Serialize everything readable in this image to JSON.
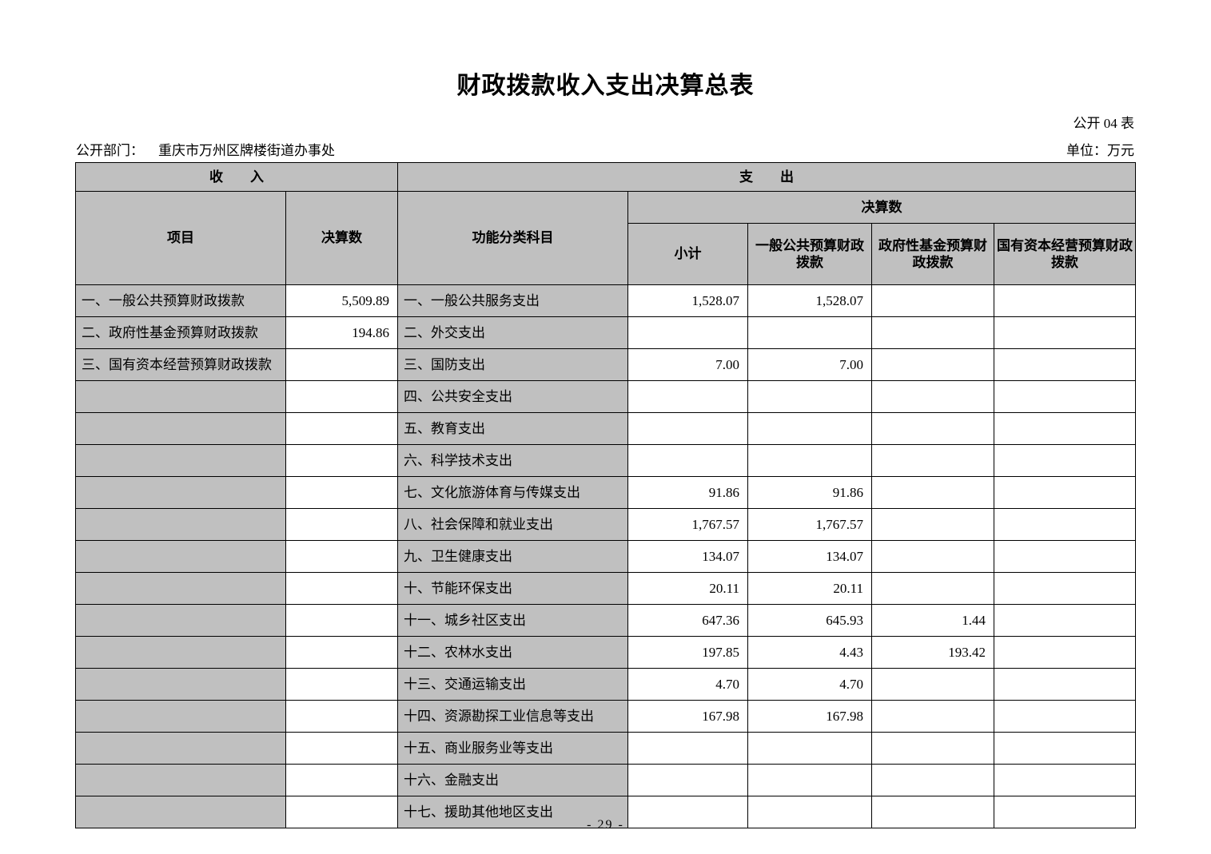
{
  "page": {
    "title": "财政拨款收入支出决算总表",
    "table_code": "公开 04 表",
    "department_label": "公开部门：",
    "department_value": "重庆市万州区牌楼街道办事处",
    "unit_label": "单位：万元",
    "page_number": "- 29 -"
  },
  "table": {
    "income_header": "收　　入",
    "expense_header": "支　　出",
    "columns": {
      "item": "项目",
      "income_final": "决算数",
      "functional": "功能分类科目",
      "final_group": "决算数",
      "subtotal": "小计",
      "general_public_budget": "一般公共预算财政拨款",
      "government_fund_budget": "政府性基金预算财政拨款",
      "state_capital_budget": "国有资本经营预算财政拨款"
    },
    "rows": [
      {
        "income_item": "一、一般公共预算财政拨款",
        "income_amount": "5,509.89",
        "expense_item": "一、一般公共服务支出",
        "subtotal": "1,528.07",
        "general": "1,528.07",
        "gov_fund": "",
        "state_capital": ""
      },
      {
        "income_item": "二、政府性基金预算财政拨款",
        "income_amount": "194.86",
        "expense_item": "二、外交支出",
        "subtotal": "",
        "general": "",
        "gov_fund": "",
        "state_capital": ""
      },
      {
        "income_item": "三、国有资本经营预算财政拨款",
        "income_amount": "",
        "expense_item": "三、国防支出",
        "subtotal": "7.00",
        "general": "7.00",
        "gov_fund": "",
        "state_capital": ""
      },
      {
        "income_item": "",
        "income_amount": "",
        "expense_item": "四、公共安全支出",
        "subtotal": "",
        "general": "",
        "gov_fund": "",
        "state_capital": ""
      },
      {
        "income_item": "",
        "income_amount": "",
        "expense_item": "五、教育支出",
        "subtotal": "",
        "general": "",
        "gov_fund": "",
        "state_capital": ""
      },
      {
        "income_item": "",
        "income_amount": "",
        "expense_item": "六、科学技术支出",
        "subtotal": "",
        "general": "",
        "gov_fund": "",
        "state_capital": ""
      },
      {
        "income_item": "",
        "income_amount": "",
        "expense_item": "七、文化旅游体育与传媒支出",
        "subtotal": "91.86",
        "general": "91.86",
        "gov_fund": "",
        "state_capital": ""
      },
      {
        "income_item": "",
        "income_amount": "",
        "expense_item": "八、社会保障和就业支出",
        "subtotal": "1,767.57",
        "general": "1,767.57",
        "gov_fund": "",
        "state_capital": ""
      },
      {
        "income_item": "",
        "income_amount": "",
        "expense_item": "九、卫生健康支出",
        "subtotal": "134.07",
        "general": "134.07",
        "gov_fund": "",
        "state_capital": ""
      },
      {
        "income_item": "",
        "income_amount": "",
        "expense_item": "十、节能环保支出",
        "subtotal": "20.11",
        "general": "20.11",
        "gov_fund": "",
        "state_capital": ""
      },
      {
        "income_item": "",
        "income_amount": "",
        "expense_item": "十一、城乡社区支出",
        "subtotal": "647.36",
        "general": "645.93",
        "gov_fund": "1.44",
        "state_capital": ""
      },
      {
        "income_item": "",
        "income_amount": "",
        "expense_item": "十二、农林水支出",
        "subtotal": "197.85",
        "general": "4.43",
        "gov_fund": "193.42",
        "state_capital": ""
      },
      {
        "income_item": "",
        "income_amount": "",
        "expense_item": "十三、交通运输支出",
        "subtotal": "4.70",
        "general": "4.70",
        "gov_fund": "",
        "state_capital": ""
      },
      {
        "income_item": "",
        "income_amount": "",
        "expense_item": "十四、资源勘探工业信息等支出",
        "subtotal": "167.98",
        "general": "167.98",
        "gov_fund": "",
        "state_capital": ""
      },
      {
        "income_item": "",
        "income_amount": "",
        "expense_item": "十五、商业服务业等支出",
        "subtotal": "",
        "general": "",
        "gov_fund": "",
        "state_capital": ""
      },
      {
        "income_item": "",
        "income_amount": "",
        "expense_item": "十六、金融支出",
        "subtotal": "",
        "general": "",
        "gov_fund": "",
        "state_capital": ""
      },
      {
        "income_item": "",
        "income_amount": "",
        "expense_item": "十七、援助其他地区支出",
        "subtotal": "",
        "general": "",
        "gov_fund": "",
        "state_capital": ""
      }
    ]
  },
  "colors": {
    "cell_gray": "#c0c0c0",
    "cell_white": "#ffffff",
    "border": "#000000",
    "text": "#000000"
  }
}
